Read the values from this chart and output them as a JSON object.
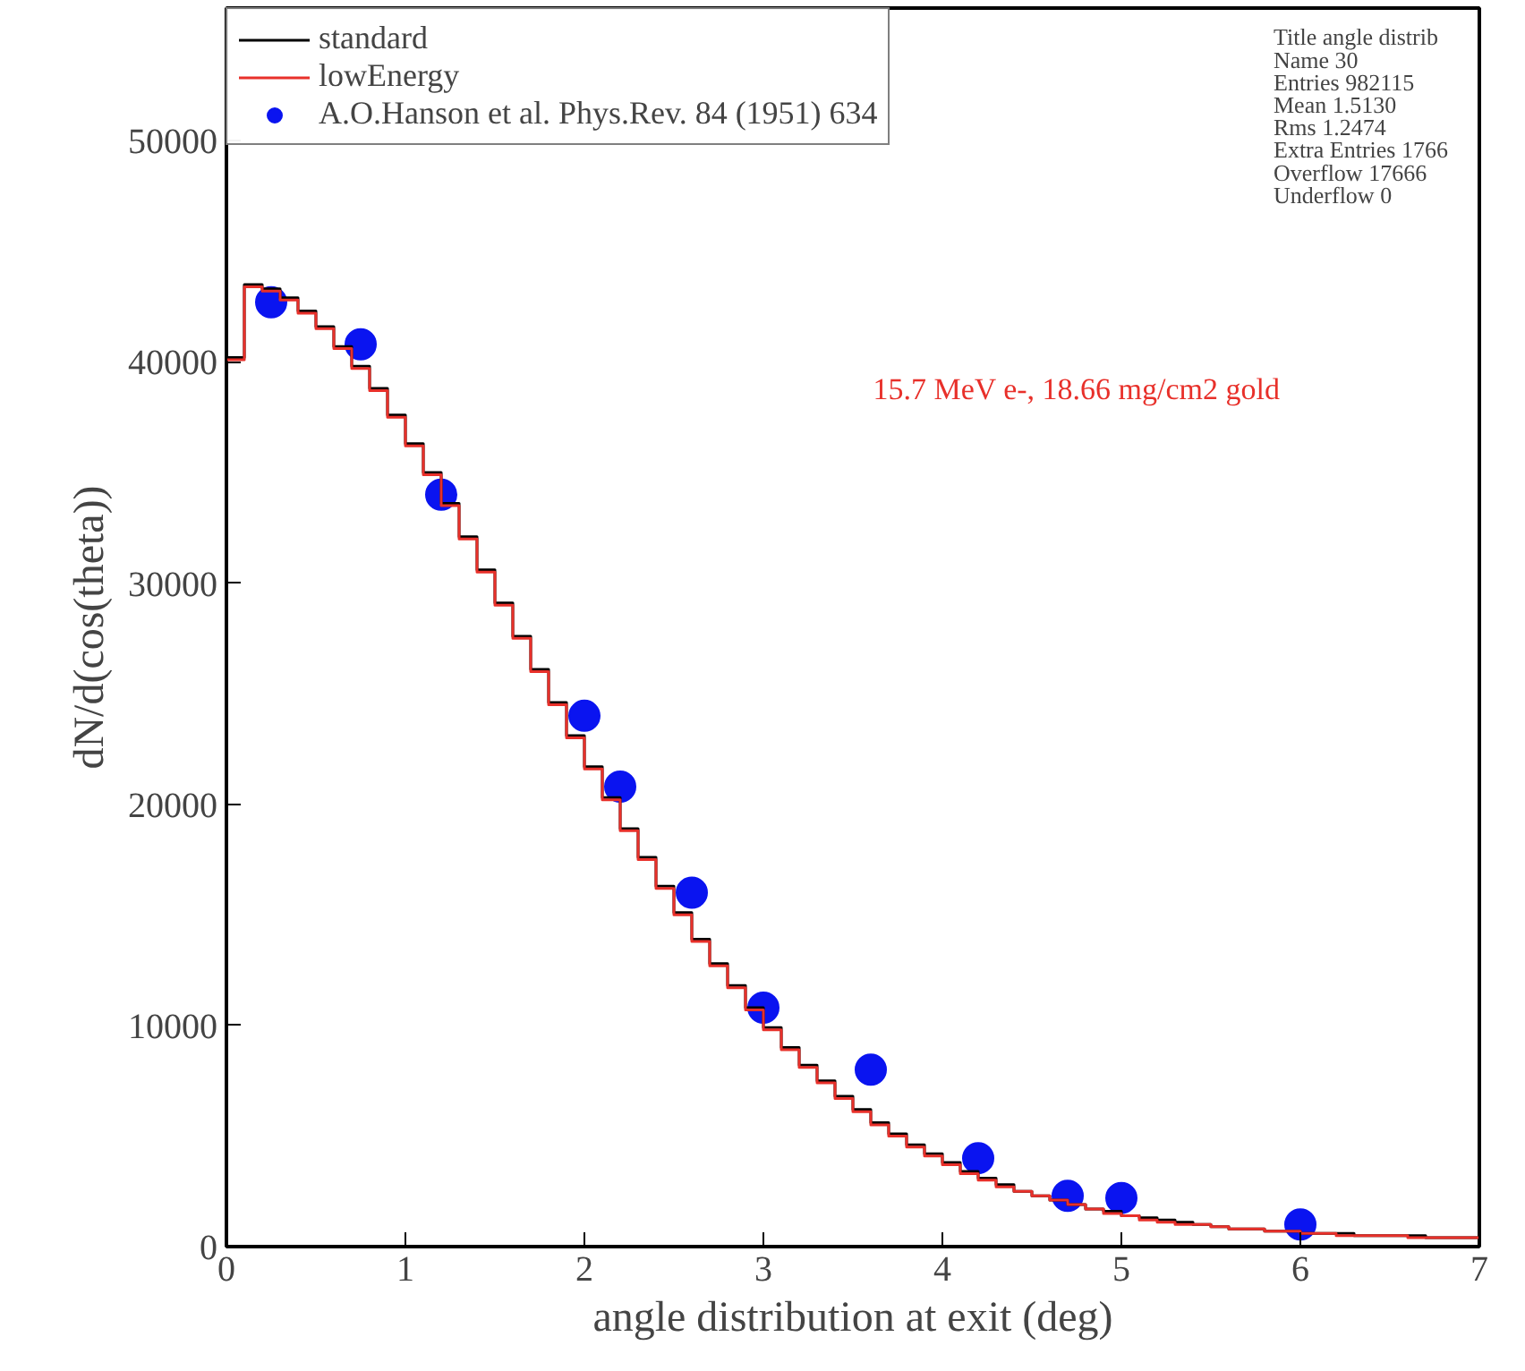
{
  "chart_data": {
    "type": "histogram",
    "xlabel": "angle distribution at exit (deg)",
    "ylabel": "dN/d(cos(theta))",
    "bins": [
      0,
      0.1,
      0.2,
      0.3,
      0.4,
      0.5,
      0.6,
      0.7,
      0.8,
      0.9,
      1.0,
      1.1,
      1.2,
      1.3,
      1.4,
      1.5,
      1.6,
      1.7,
      1.8,
      1.9,
      2.0,
      2.1,
      2.2,
      2.3,
      2.4,
      2.5,
      2.6,
      2.7,
      2.8,
      2.9,
      3.0,
      3.1,
      3.2,
      3.3,
      3.4,
      3.5,
      3.6,
      3.7,
      3.8,
      3.9,
      4.0,
      4.1,
      4.2,
      4.3,
      4.4,
      4.5,
      4.6,
      4.7,
      4.8,
      4.9,
      5.0,
      5.1,
      5.2,
      5.3,
      5.4,
      5.5,
      5.6,
      5.7,
      5.8,
      5.9,
      6.0,
      6.1,
      6.2,
      6.3,
      6.4,
      6.5,
      6.6,
      6.7,
      6.8,
      6.9,
      7.0
    ],
    "series": [
      {
        "name": "standard",
        "color": "#000000",
        "values": [
          40200,
          43500,
          43300,
          42900,
          42300,
          41600,
          40700,
          39800,
          38800,
          37600,
          36300,
          35000,
          33600,
          32100,
          30600,
          29100,
          27600,
          26100,
          24600,
          23100,
          21700,
          20300,
          18900,
          17600,
          16300,
          15100,
          13900,
          12800,
          11800,
          10800,
          9900,
          9000,
          8200,
          7500,
          6800,
          6200,
          5600,
          5100,
          4600,
          4200,
          3800,
          3400,
          3100,
          2800,
          2500,
          2300,
          2100,
          1900,
          1700,
          1600,
          1400,
          1300,
          1200,
          1100,
          1000,
          900,
          800,
          800,
          700,
          700,
          600,
          600,
          600,
          500,
          500,
          500,
          500,
          400,
          400,
          400
        ]
      },
      {
        "name": "lowEnergy",
        "color": "#e8302a",
        "values": [
          40100,
          43400,
          43200,
          42800,
          42200,
          41500,
          40600,
          39700,
          38700,
          37500,
          36200,
          34900,
          33500,
          32000,
          30500,
          29000,
          27500,
          26000,
          24500,
          23000,
          21600,
          20200,
          18800,
          17500,
          16200,
          15000,
          13800,
          12700,
          11700,
          10700,
          9800,
          8900,
          8100,
          7400,
          6700,
          6100,
          5500,
          5000,
          4500,
          4100,
          3700,
          3300,
          3000,
          2700,
          2500,
          2300,
          2100,
          1900,
          1700,
          1500,
          1400,
          1200,
          1100,
          1000,
          1000,
          900,
          800,
          800,
          700,
          700,
          600,
          600,
          500,
          500,
          500,
          500,
          400,
          400,
          400,
          400
        ]
      },
      {
        "name": "A.O.Hanson et al. Phys.Rev. 84 (1951) 634",
        "type": "scatter",
        "color": "#0a14f0",
        "marker": "circle",
        "x": [
          0.25,
          0.75,
          1.2,
          2.0,
          2.2,
          2.6,
          3.0,
          3.6,
          4.2,
          4.7,
          5.0,
          6.0
        ],
        "values": [
          42700,
          40800,
          34000,
          24000,
          20800,
          16000,
          10800,
          8000,
          4000,
          2300,
          2200,
          1000
        ]
      }
    ],
    "xlim": [
      0,
      7
    ],
    "xticks": [
      0,
      1,
      2,
      3,
      4,
      5,
      6,
      7
    ],
    "ylim": [
      0,
      56000
    ],
    "yticks": [
      0,
      10000,
      20000,
      30000,
      40000,
      50000
    ],
    "grid": false,
    "legend": "top left",
    "annotations": [
      "15.7 MeV e-, 18.66 mg/cm2 gold",
      "Title angle distrib",
      "Name 30",
      "Entries 982115",
      "Mean 1.5130",
      "Rms 1.2474",
      "Extra Entries 1766",
      "Overflow 17666",
      "Underflow 0"
    ]
  }
}
